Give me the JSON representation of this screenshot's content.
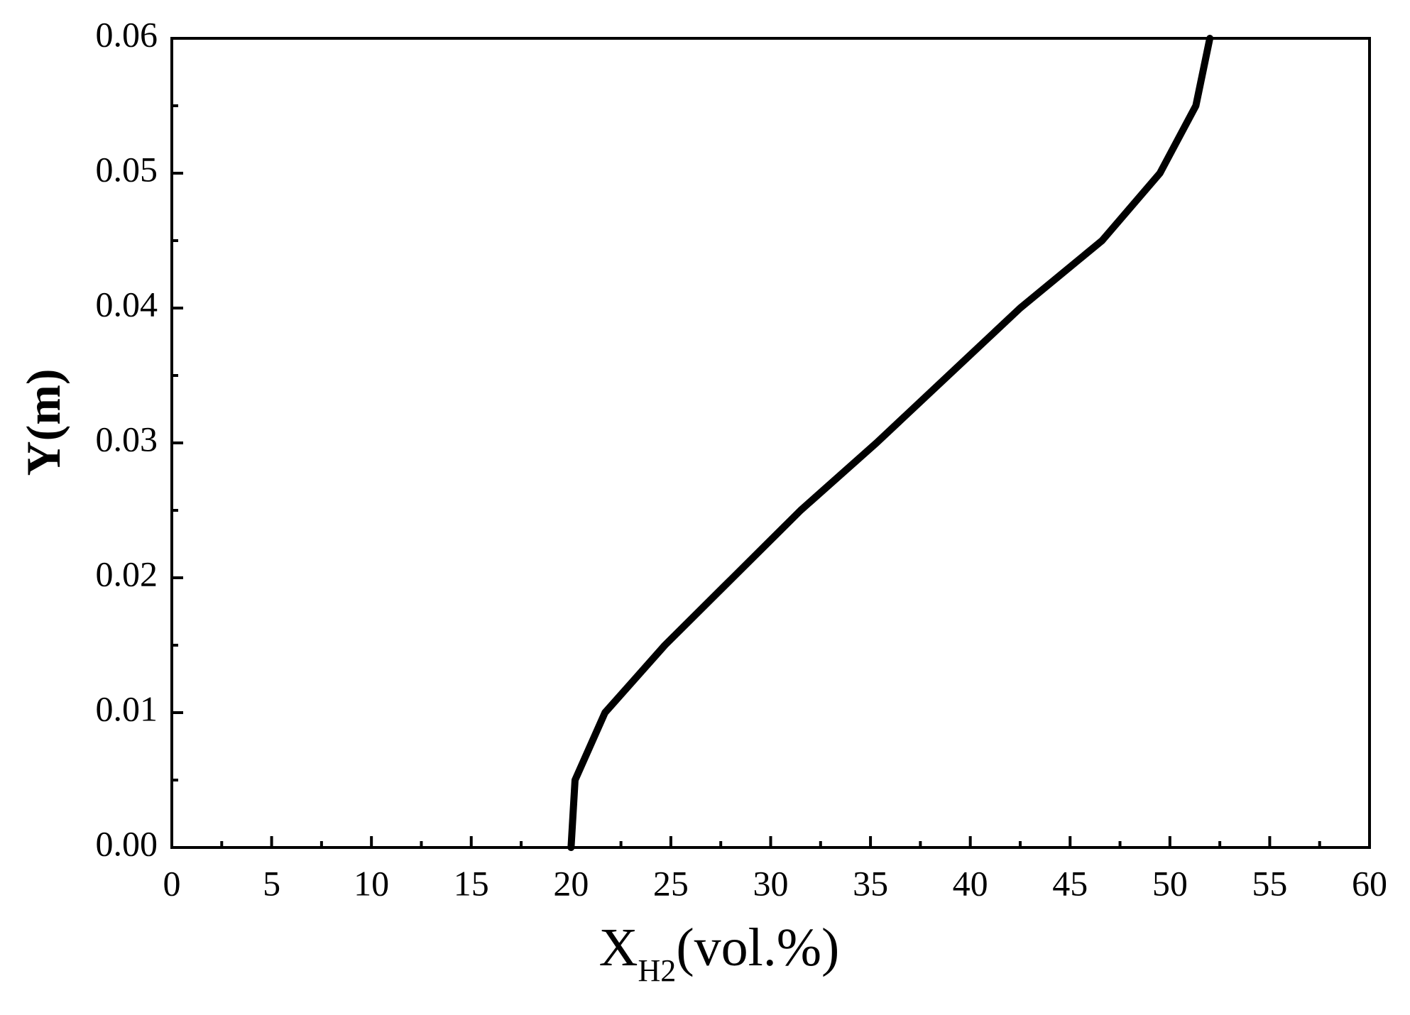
{
  "chart_data": {
    "type": "line",
    "ylabel": "Y(m)",
    "xlabel": {
      "main": "X",
      "sub": "H2",
      "unit": "(vol.%)"
    },
    "x": [
      20,
      20.2,
      21.7,
      24.7,
      28.1,
      31.5,
      35.3,
      38.9,
      42.5,
      46.6,
      49.5,
      51.3,
      52
    ],
    "values": [
      0,
      0.005,
      0.01,
      0.015,
      0.02,
      0.025,
      0.03,
      0.035,
      0.04,
      0.045,
      0.05,
      0.055,
      0.06
    ],
    "color": "#000000",
    "xlim": [
      0,
      60
    ],
    "xticks": [
      0,
      5,
      10,
      15,
      20,
      25,
      30,
      35,
      40,
      45,
      50,
      55,
      60
    ],
    "xminorticks": [
      2.5,
      7.5,
      12.5,
      17.5,
      22.5,
      27.5,
      32.5,
      37.5,
      42.5,
      47.5,
      52.5,
      57.5
    ],
    "ylim": [
      0,
      0.06
    ],
    "yticks": [
      {
        "value": 0,
        "label": "0.00"
      },
      {
        "value": 0.01,
        "label": "0.01"
      },
      {
        "value": 0.02,
        "label": "0.02"
      },
      {
        "value": 0.03,
        "label": "0.03"
      },
      {
        "value": 0.04,
        "label": "0.04"
      },
      {
        "value": 0.05,
        "label": "0.05"
      },
      {
        "value": 0.06,
        "label": "0.06"
      }
    ],
    "yminorticks": [
      0.005,
      0.015,
      0.025,
      0.035,
      0.045,
      0.055
    ],
    "grid": false
  }
}
